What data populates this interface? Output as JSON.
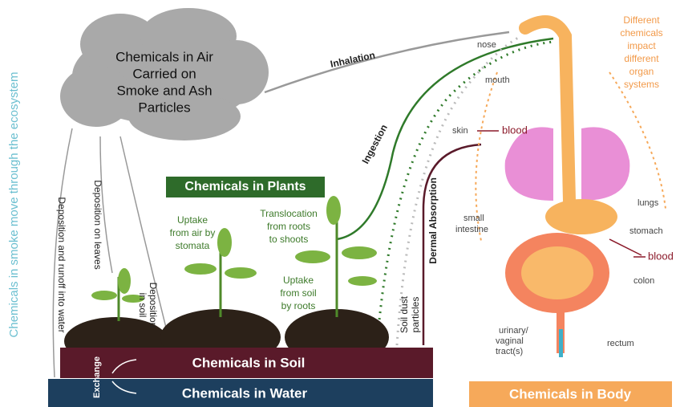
{
  "side_title": "Chemicals in smoke move through the ecosystem",
  "air": {
    "lines": [
      "Chemicals in Air",
      "Carried on",
      "Smoke and Ash",
      "Particles"
    ]
  },
  "plants": {
    "title": "Chemicals in Plants",
    "uptake_air": [
      "Uptake",
      "from air by",
      "stomata"
    ],
    "translocation": [
      "Translocation",
      "from roots",
      "to shoots"
    ],
    "uptake_soil": [
      "Uptake",
      "from soil",
      "by roots"
    ]
  },
  "deposition": {
    "water": "Deposition and runoff into water",
    "leaves": "Deposition on leaves",
    "soil": [
      "Deposition",
      "in soil"
    ]
  },
  "pathways": {
    "inhalation": "Inhalation",
    "ingestion": "Ingestion",
    "dermal": "Dermal Absorption",
    "soil_dust": [
      "Soil dust",
      "particles"
    ],
    "exchange": "Exchange"
  },
  "body": {
    "nose": "nose",
    "mouth": "mouth",
    "skin": "skin",
    "blood_upper": "blood",
    "lungs": "lungs",
    "small_intestine": [
      "small",
      "intestine"
    ],
    "stomach": "stomach",
    "blood_lower": "blood",
    "colon": "colon",
    "urinary": [
      "urinary/",
      "vaginal",
      "tract(s)"
    ],
    "rectum": "rectum",
    "note": [
      "Different",
      "chemicals",
      "impact",
      "different",
      "organ",
      "systems"
    ]
  },
  "boxes": {
    "soil": "Chemicals in Soil",
    "water": "Chemicals in Water",
    "body": "Chemicals in Body"
  }
}
